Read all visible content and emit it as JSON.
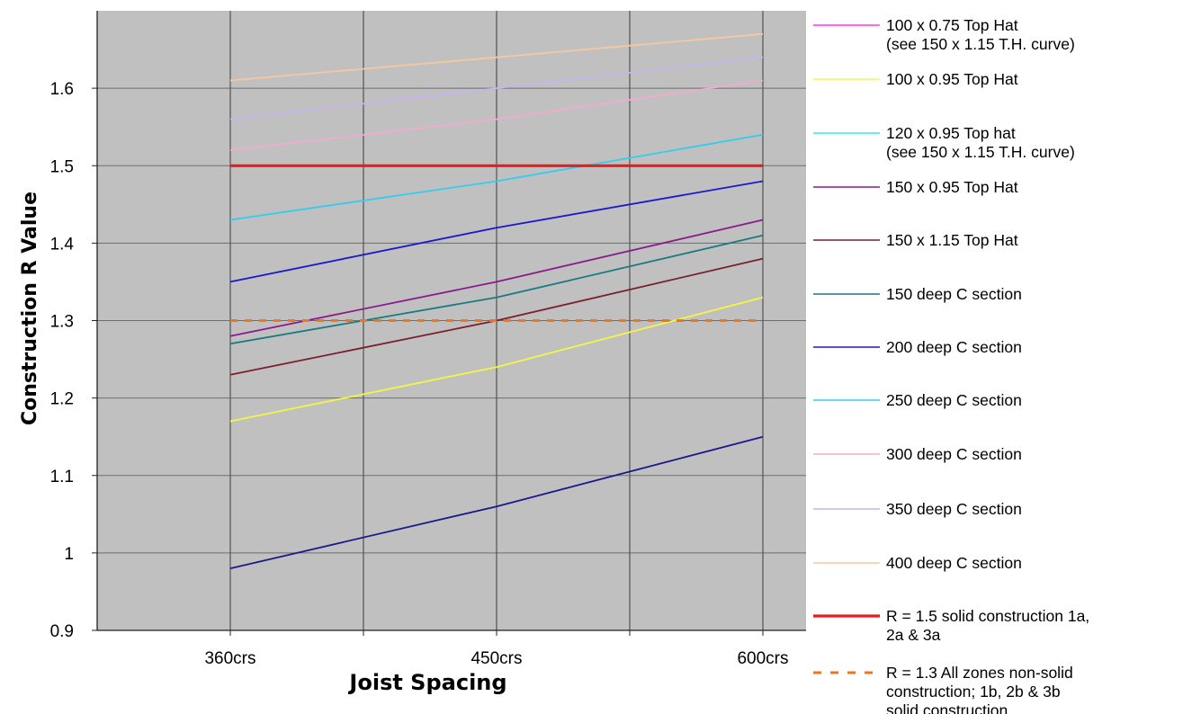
{
  "chart_data": {
    "type": "line",
    "title": "",
    "xlabel": "Joist Spacing",
    "ylabel": "Construction R Value",
    "categories": [
      "360crs",
      "450crs",
      "600crs"
    ],
    "ylim": [
      0.9,
      1.7
    ],
    "yticks": [
      "0.9",
      "1",
      "1.1",
      "1.2",
      "1.3",
      "1.4",
      "1.5",
      "1.6"
    ],
    "grid": true,
    "legend_position": "right",
    "plot_background": "#c0c0c0",
    "series": [
      {
        "name": [
          "100 x 0.75 Top Hat",
          "(see 150 x 1.15 T.H. curve)"
        ],
        "color": "#ff33ff",
        "values": null
      },
      {
        "name": [
          "100 x 0.95 Top Hat"
        ],
        "color": "#f5f542",
        "values": [
          1.17,
          1.24,
          1.33
        ]
      },
      {
        "name": [
          "120 x 0.95 Top hat",
          "(see 150 x 1.15 T.H. curve)"
        ],
        "color": "#33e6ee",
        "values": null
      },
      {
        "name": [
          "150 x 0.95 Top Hat"
        ],
        "color": "#8b1a8b",
        "values": [
          1.28,
          1.35,
          1.43
        ]
      },
      {
        "name": [
          "150 x 1.15 Top Hat"
        ],
        "color": "#7a1f2b",
        "values": [
          1.23,
          1.3,
          1.38
        ]
      },
      {
        "name": [
          "150 deep C section"
        ],
        "color": "#1a7a80",
        "values": [
          1.27,
          1.33,
          1.41
        ]
      },
      {
        "name": [
          "200 deep C section"
        ],
        "color": "#1a1acc",
        "values": [
          1.35,
          1.42,
          1.48
        ]
      },
      {
        "name": [
          "250 deep C section"
        ],
        "color": "#33ccee",
        "values": [
          1.43,
          1.48,
          1.54
        ]
      },
      {
        "name": [
          "300 deep C section"
        ],
        "color": "#f5a8d0",
        "values": [
          1.52,
          1.56,
          1.61
        ]
      },
      {
        "name": [
          "350 deep C section"
        ],
        "color": "#c8b4f0",
        "values": [
          1.56,
          1.6,
          1.64
        ]
      },
      {
        "name": [
          "400 deep C section"
        ],
        "color": "#f5c8a0",
        "values": [
          1.61,
          1.64,
          1.67
        ]
      },
      {
        "name": [
          "R = 1.5 solid construction 1a,",
          "2a & 3a"
        ],
        "color": "#e81c1c",
        "values": [
          1.5,
          1.5,
          1.5
        ],
        "style": "solid-thick"
      },
      {
        "name": [
          "R = 1.3 All zones non-solid",
          "construction; 1b, 2b & 3b",
          "solid construction"
        ],
        "color": "#f0761c",
        "values": [
          1.3,
          1.3,
          1.3
        ],
        "style": "dashed"
      },
      {
        "name": [],
        "color": "#1a1a8a",
        "values": [
          0.98,
          1.06,
          1.15
        ]
      }
    ]
  }
}
